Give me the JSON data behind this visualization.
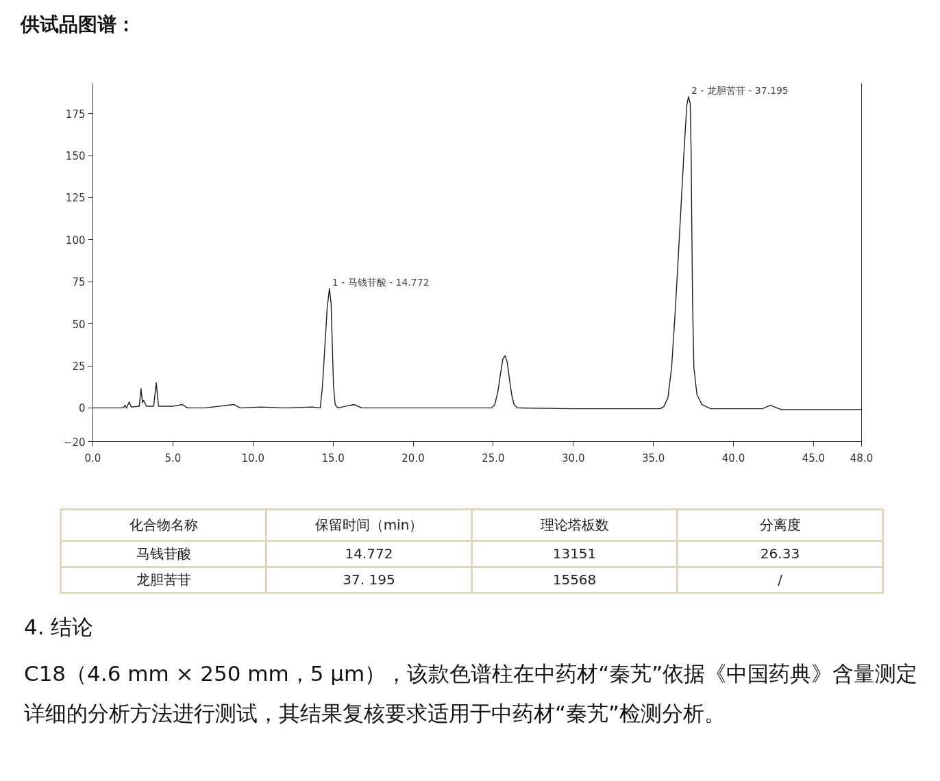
{
  "chart_data": {
    "type": "line",
    "title": "供试品图谱：",
    "x": [
      0,
      1,
      1.9,
      2.0,
      2.1,
      2.27,
      2.4,
      2.9,
      3.01,
      3.1,
      3.17,
      3.35,
      3.8,
      3.96,
      4.1,
      5.0,
      5.6,
      5.9,
      7,
      8.8,
      9.2,
      10.5,
      12,
      13.7,
      14.2,
      14.34,
      14.48,
      14.63,
      14.772,
      14.88,
      14.96,
      15.03,
      15.13,
      15.3,
      16.3,
      16.8,
      20,
      24.9,
      25.1,
      25.3,
      25.45,
      25.6,
      25.74,
      25.88,
      26.0,
      26.15,
      26.3,
      26.5,
      30,
      35.44,
      35.67,
      35.91,
      36.14,
      36.35,
      36.53,
      36.74,
      36.93,
      37.09,
      37.195,
      37.3,
      37.36,
      37.4,
      37.45,
      37.53,
      37.72,
      38.03,
      38.58,
      41.8,
      42.3,
      43,
      45,
      48
    ],
    "series": [
      {
        "color": "#1e1e1e",
        "values": [
          0,
          0,
          0,
          1.5,
          0,
          3.5,
          0.5,
          1,
          11.5,
          3,
          4.5,
          1,
          1,
          15,
          1,
          1,
          2,
          0,
          0,
          2,
          0,
          0.5,
          0,
          0.5,
          0,
          13,
          35,
          59,
          71,
          62,
          35,
          13,
          2,
          0,
          2,
          0,
          0,
          0,
          2,
          10,
          20,
          29,
          31,
          27,
          18,
          8,
          2,
          0,
          -0.5,
          -0.5,
          1,
          6,
          24,
          55,
          85,
          122,
          155,
          180,
          185,
          181,
          152,
          107,
          62,
          24,
          8,
          2,
          -0.5,
          -0.5,
          1.5,
          -1,
          -1,
          -1
        ]
      }
    ],
    "xlim": [
      0,
      48
    ],
    "ylim": [
      -20,
      193
    ],
    "xticks": [
      {
        "value": 0,
        "label": "0.0"
      },
      {
        "value": 5,
        "label": "5.0"
      },
      {
        "value": 10,
        "label": "10.0"
      },
      {
        "value": 15,
        "label": "15.0"
      },
      {
        "value": 20,
        "label": "20.0"
      },
      {
        "value": 25,
        "label": "25.0"
      },
      {
        "value": 30,
        "label": "30.0"
      },
      {
        "value": 35,
        "label": "35.0"
      },
      {
        "value": 40,
        "label": "40.0"
      },
      {
        "value": 45,
        "label": "45.0"
      },
      {
        "value": 48,
        "label": "48.0"
      }
    ],
    "yticks": [
      -20,
      0,
      25,
      50,
      75,
      100,
      125,
      150,
      175
    ],
    "line_style": "solid",
    "marker": "none",
    "annotations": [
      {
        "text": "1 - 马钱苷酸 - 14.772",
        "x": 14.772,
        "y": 71
      },
      {
        "text": "2 - 龙胆苦苷 - 37.195",
        "x": 37.195,
        "y": 185
      },
      "化合物名称",
      "保留时间（min）",
      "理论塔板数",
      "分离度",
      "马钱苷酸",
      "14.772",
      "13151",
      "26.33",
      "龙胆苦苷",
      "37. 195",
      "15568",
      "/",
      "4. 结论",
      "C18（4.6 mm × 250 mm，5 μm），该款色谱柱在中药材“秦艽”依据《中国药典》含量测定详细的分析方法进行测试，其结果复核要求适用于中药材“秦艽”检测分析。"
    ]
  }
}
